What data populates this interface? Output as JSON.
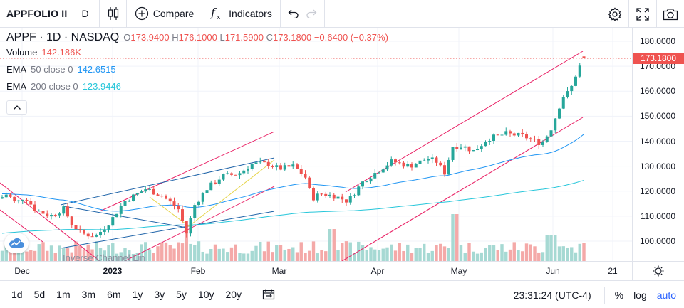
{
  "toolbar": {
    "symbol": "APPFOLIO II",
    "interval": "D",
    "compare_label": "Compare",
    "indicators_label": "Indicators",
    "icons": [
      "candles-icon",
      "plus-circle-icon",
      "fx-icon",
      "undo-icon",
      "redo-icon",
      "gear-icon",
      "fullscreen-icon",
      "camera-icon"
    ]
  },
  "legend": {
    "title": "APPF · 1D · NASDAQ",
    "open_label": "O",
    "open": "173.9400",
    "high_label": "H",
    "high": "176.1000",
    "low_label": "L",
    "low": "171.5900",
    "close_label": "C",
    "close": "173.1800",
    "change": "−0.6400 (−0.37%)",
    "volume_label": "Volume",
    "volume": "142.186K",
    "ema50_label": "EMA",
    "ema50_params": "50 close 0",
    "ema50": "142.6515",
    "ema200_label": "EMA",
    "ema200_params": "200 close 0",
    "ema200": "123.9446"
  },
  "price_axis": {
    "ticks": [
      "180.0000",
      "170.0000",
      "160.0000",
      "150.0000",
      "140.0000",
      "130.0000",
      "120.0000",
      "110.0000",
      "100.0000"
    ],
    "last_price": "173.1800"
  },
  "time_axis": {
    "ticks": [
      "Dec",
      "2023",
      "Feb",
      "Mar",
      "Apr",
      "May",
      "Jun",
      "21"
    ]
  },
  "drawing_label": "Inverse Channel Lin",
  "bottom": {
    "ranges": [
      "1d",
      "5d",
      "1m",
      "3m",
      "6m",
      "1y",
      "3y",
      "5y",
      "10y",
      "20y"
    ],
    "clock": "23:31:24 (UTC-4)",
    "percent": "%",
    "log": "log",
    "auto": "auto"
  },
  "colors": {
    "up": "#26a69a",
    "down": "#ef5350",
    "ema50": "#2196f3",
    "ema200": "#26c6da",
    "channel": "#e91e63",
    "trendline": "#1e63a8",
    "fib": "#e6d44a",
    "accent": "#2962ff"
  },
  "chart_data": {
    "type": "candlestick",
    "symbol": "APPF",
    "interval": "1D",
    "exchange": "NASDAQ",
    "ylim": [
      94,
      186
    ],
    "last": {
      "open": 173.94,
      "high": 176.1,
      "low": 171.59,
      "close": 173.18,
      "volume": "142.186K"
    },
    "ema50_last": 142.6515,
    "ema200_last": 123.9446
  }
}
